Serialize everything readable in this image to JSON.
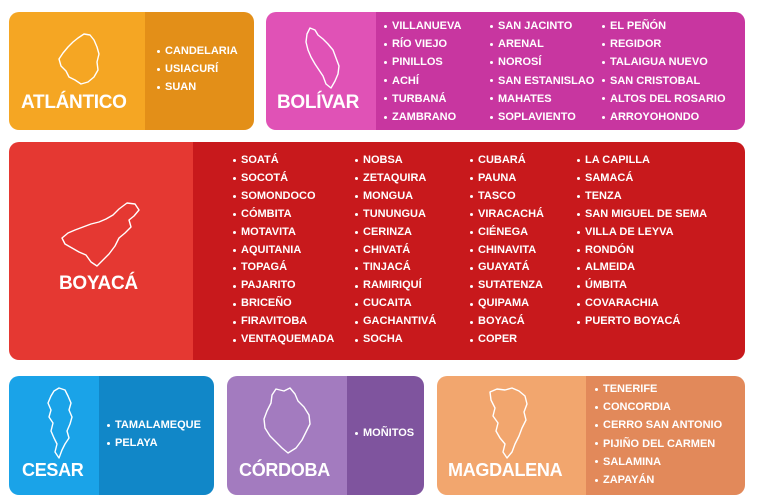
{
  "regions": {
    "atlantico": {
      "title": "ATLÁNTICO",
      "icon": "atlantico-map-icon",
      "colors": {
        "left": "#f5a623",
        "right": "#e38f18"
      },
      "columns": [
        [
          "CANDELARIA",
          "USIACURÍ",
          "SUAN"
        ]
      ]
    },
    "bolivar": {
      "title": "BOLÍVAR",
      "icon": "bolivar-map-icon",
      "colors": {
        "left": "#e052b6",
        "right": "#c836a0"
      },
      "columns": [
        [
          "VILLANUEVA",
          "RÍO VIEJO",
          "PINILLOS",
          "ACHÍ",
          "TURBANÁ",
          "ZAMBRANO"
        ],
        [
          "SAN JACINTO",
          "ARENAL",
          "NOROSÍ",
          "SAN ESTANISLAO",
          "MAHATES",
          "SOPLAVIENTO"
        ],
        [
          "EL PEÑÓN",
          "REGIDOR",
          "TALAIGUA NUEVO",
          "SAN CRISTOBAL",
          "ALTOS DEL ROSARIO",
          "ARROYOHONDO"
        ]
      ]
    },
    "boyaca": {
      "title": "BOYACÁ",
      "icon": "boyaca-map-icon",
      "colors": {
        "left": "#e53832",
        "right": "#c8191c"
      },
      "columns": [
        [
          "SOATÁ",
          "SOCOTÁ",
          "SOMONDOCO",
          "CÓMBITA",
          "MOTAVITA",
          "AQUITANIA",
          "TOPAGÁ",
          "PAJARITO",
          "BRICEÑO",
          "FIRAVITOBA",
          "VENTAQUEMADA"
        ],
        [
          "NOBSA",
          "ZETAQUIRA",
          "MONGUA",
          "TUNUNGUA",
          "CERINZA",
          "CHIVATÁ",
          "TINJACÁ",
          "RAMIRIQUÍ",
          "CUCAITA",
          "GACHANTIVÁ",
          "SOCHA"
        ],
        [
          "CUBARÁ",
          "PAUNA",
          "TASCO",
          "VIRACACHÁ",
          "CIÉNEGA",
          "CHINAVITA",
          "GUAYATÁ",
          "SUTATENZA",
          "QUIPAMA",
          "BOYACÁ",
          "COPER"
        ],
        [
          "LA CAPILLA",
          "SAMACÁ",
          "TENZA",
          "SAN MIGUEL DE SEMA",
          "VILLA DE LEYVA",
          "RONDÓN",
          "ALMEIDA",
          "ÚMBITA",
          "COVARACHIA",
          "PUERTO BOYACÁ"
        ]
      ]
    },
    "cesar": {
      "title": "CESAR",
      "icon": "cesar-map-icon",
      "colors": {
        "left": "#1aa3e8",
        "right": "#1187c8"
      },
      "columns": [
        [
          "TAMALAMEQUE",
          "PELAYA"
        ]
      ]
    },
    "cordoba": {
      "title": "CÓRDOBA",
      "icon": "cordoba-map-icon",
      "colors": {
        "left": "#a37bbf",
        "right": "#7f549e"
      },
      "columns": [
        [
          "MOÑITOS"
        ]
      ]
    },
    "magdalena": {
      "title": "MAGDALENA",
      "icon": "magdalena-map-icon",
      "colors": {
        "left": "#f2a66e",
        "right": "#e2895a"
      },
      "columns": [
        [
          "TENERIFE",
          "CONCORDIA",
          "CERRO SAN ANTONIO",
          "PIJIÑO DEL CARMEN",
          "SALAMINA",
          "ZAPAYÁN"
        ]
      ]
    }
  }
}
